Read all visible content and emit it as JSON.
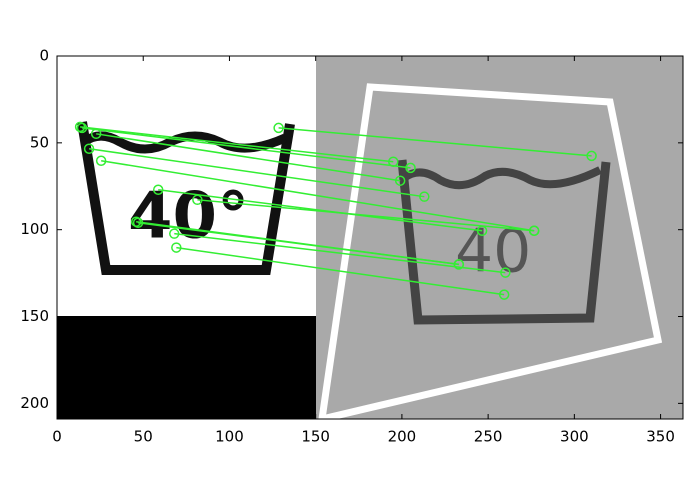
{
  "chart_data": {
    "type": "matches",
    "xlim": [
      0,
      363
    ],
    "ylim": [
      209,
      0
    ],
    "xticks": [
      0,
      50,
      100,
      150,
      200,
      250,
      300,
      350
    ],
    "yticks": [
      0,
      50,
      100,
      150,
      200
    ],
    "color": "#33ee33",
    "matches": [
      [
        128.5,
        41.4,
        310,
        57.5
      ],
      [
        13.4,
        40.8,
        195,
        60.9
      ],
      [
        14.5,
        41.4,
        205,
        64.4
      ],
      [
        22.7,
        44.8,
        199,
        71.8
      ],
      [
        18.6,
        53.4,
        213,
        81
      ],
      [
        25.6,
        60.3,
        276.7,
        100.6
      ],
      [
        58.7,
        77,
        246.5,
        100.6
      ],
      [
        81.4,
        82.8,
        276.7,
        100.6
      ],
      [
        45.9,
        95.4,
        233,
        120
      ],
      [
        68,
        102.3,
        260,
        124.7
      ],
      [
        69.2,
        110.3,
        259.3,
        137.4
      ],
      [
        47,
        96,
        233,
        120
      ]
    ]
  }
}
